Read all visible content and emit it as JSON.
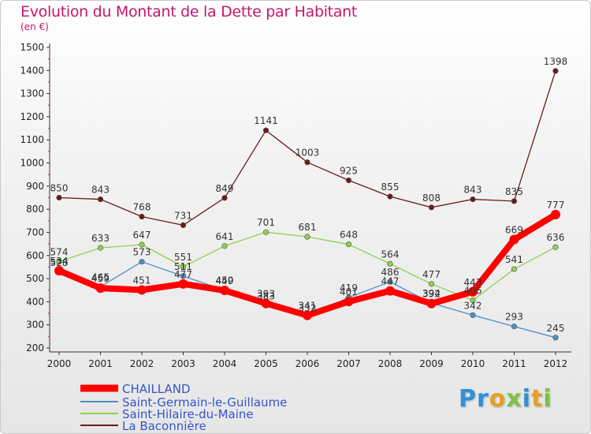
{
  "chart_data": {
    "type": "line",
    "title": "Evolution du Montant de la Dette par Habitant",
    "subtitle": "(en €)",
    "categories": [
      "2000",
      "2001",
      "2002",
      "2003",
      "2004",
      "2005",
      "2006",
      "2007",
      "2008",
      "2009",
      "2010",
      "2011",
      "2012"
    ],
    "ylim": [
      200,
      1500
    ],
    "yticks": [
      200,
      300,
      400,
      500,
      600,
      700,
      800,
      900,
      1000,
      1100,
      1200,
      1300,
      1400,
      1500
    ],
    "grid": false,
    "legend_position": "bottom-left",
    "series": [
      {
        "name": "CHAILLAND",
        "color": "#ff0000",
        "values": [
          534,
          459,
          451,
          477,
          449,
          393,
          341,
          401,
          447,
          392,
          443,
          669,
          777
        ]
      },
      {
        "name": "Saint-Germain-le-Guillaume",
        "color": "#4f8ec6",
        "values": [
          528,
          465,
          573,
          511,
          450,
          383,
          332,
          419,
          486,
          394,
          342,
          293,
          245
        ]
      },
      {
        "name": "Saint-Hilaire-du-Maine",
        "color": "#8fd14f",
        "values": [
          574,
          633,
          647,
          551,
          641,
          701,
          681,
          648,
          564,
          477,
          406,
          541,
          636
        ]
      },
      {
        "name": "La Baconnière",
        "color": "#6b1a1a",
        "values": [
          850,
          843,
          768,
          731,
          849,
          1141,
          1003,
          925,
          855,
          808,
          843,
          835,
          1398
        ]
      }
    ]
  },
  "logo": {
    "text": "Proxiti",
    "colors": [
      "#2f8fd8",
      "#e8a020",
      "#7cc242"
    ]
  }
}
